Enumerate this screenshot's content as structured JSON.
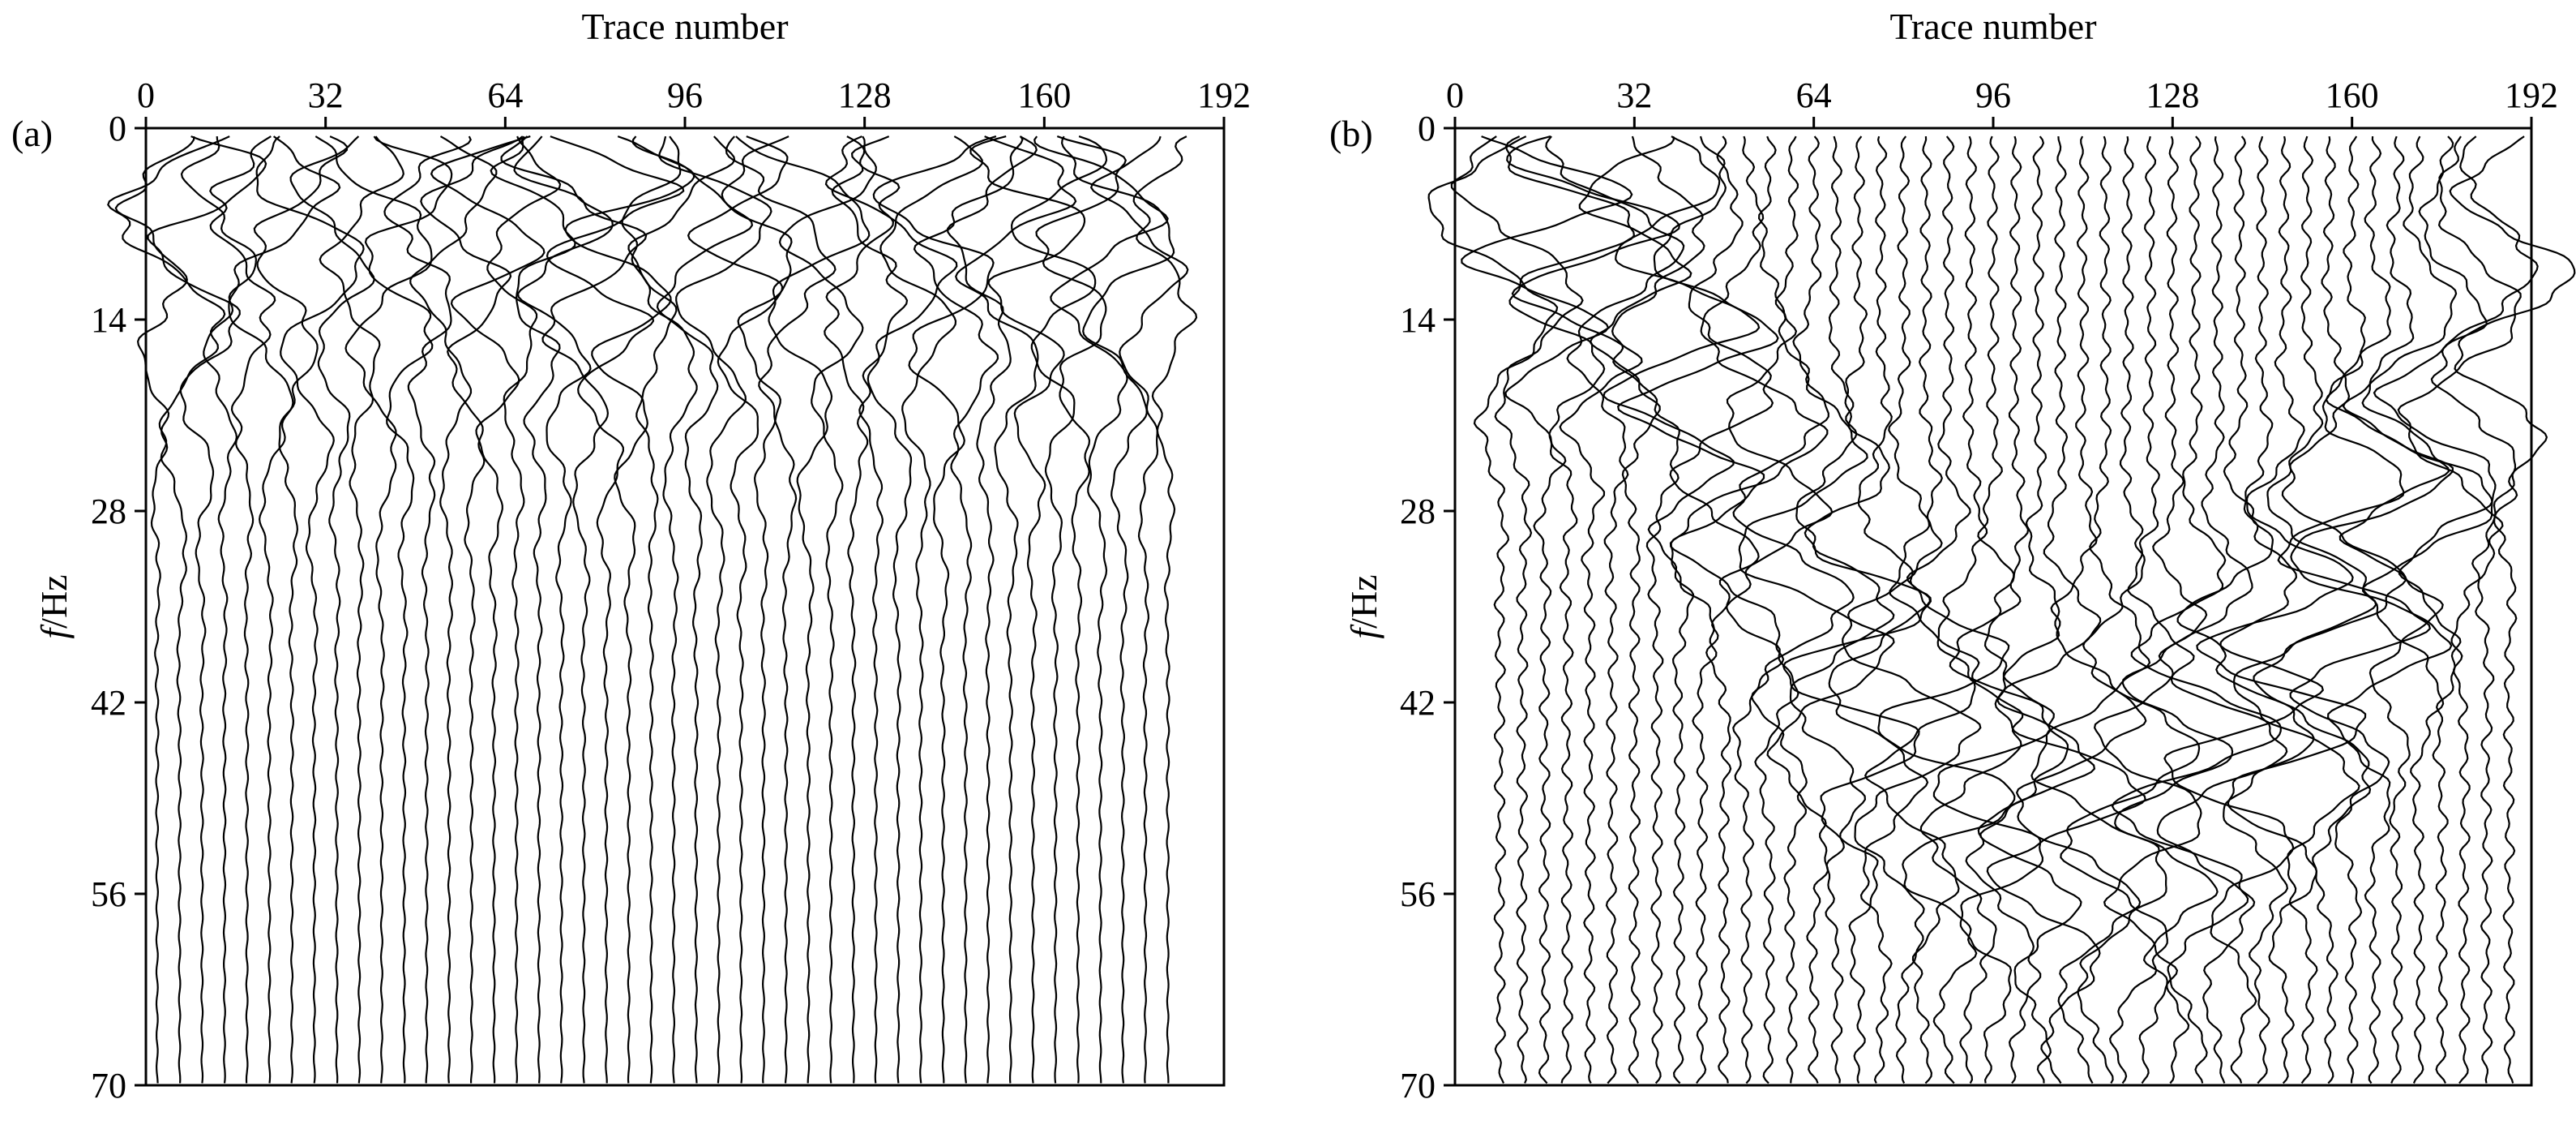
{
  "figure": {
    "panels": [
      "(a)",
      "(b)"
    ]
  },
  "chart_data": [
    {
      "type": "line",
      "panel_label": "(a)",
      "xlabel": "Trace number",
      "ylabel_italic": "f",
      "ylabel_rest": "/Hz",
      "xlim": [
        0,
        192
      ],
      "ylim": [
        70,
        0
      ],
      "x_axis_position": "top",
      "xticks": [
        0,
        32,
        64,
        96,
        128,
        160,
        192
      ],
      "yticks": [
        0,
        14,
        28,
        42,
        56,
        70
      ],
      "grid": false,
      "legend": "none",
      "line_color": "#000000",
      "description_of_series": "Wiggle traces: one vertical curve per trace, baseline at trace number, horizontal deflection is amplitude versus frequency",
      "trace_positions": [
        2,
        6,
        10,
        14,
        18,
        22,
        26,
        30,
        34,
        38,
        42,
        46,
        50,
        54,
        58,
        62,
        66,
        70,
        74,
        78,
        82,
        86,
        90,
        94,
        98,
        102,
        106,
        110,
        114,
        118,
        122,
        126,
        130,
        134,
        138,
        142,
        146,
        150,
        154,
        158,
        162,
        166,
        170,
        174,
        178,
        182
      ],
      "trace_amplitude_trace_units": 9,
      "trace_energy_band_hz": [
        0,
        28
      ]
    },
    {
      "type": "line",
      "panel_label": "(b)",
      "xlabel": "Trace number",
      "ylabel_italic": "f",
      "ylabel_rest": "/Hz",
      "xlim": [
        0,
        192
      ],
      "ylim": [
        70,
        0
      ],
      "x_axis_position": "top",
      "xticks": [
        0,
        32,
        64,
        96,
        128,
        160,
        192
      ],
      "yticks": [
        0,
        14,
        28,
        42,
        56,
        70
      ],
      "grid": false,
      "legend": "none",
      "line_color": "#000000",
      "description_of_series": "Wiggle traces after transform: energy concentrates along a bowl-shaped band, deepest near trace 112 at about 49 Hz",
      "trace_positions": [
        8,
        12,
        16,
        20,
        24,
        28,
        32,
        36,
        40,
        44,
        48,
        52,
        56,
        60,
        64,
        68,
        72,
        76,
        80,
        84,
        88,
        92,
        96,
        100,
        104,
        108,
        112,
        116,
        120,
        124,
        128,
        132,
        136,
        140,
        144,
        148,
        152,
        156,
        160,
        164,
        168,
        172,
        176,
        180,
        184,
        188
      ],
      "trace_amplitude_trace_units": 12,
      "energy_band_center": {
        "trace": 112,
        "hz": 49
      }
    }
  ]
}
